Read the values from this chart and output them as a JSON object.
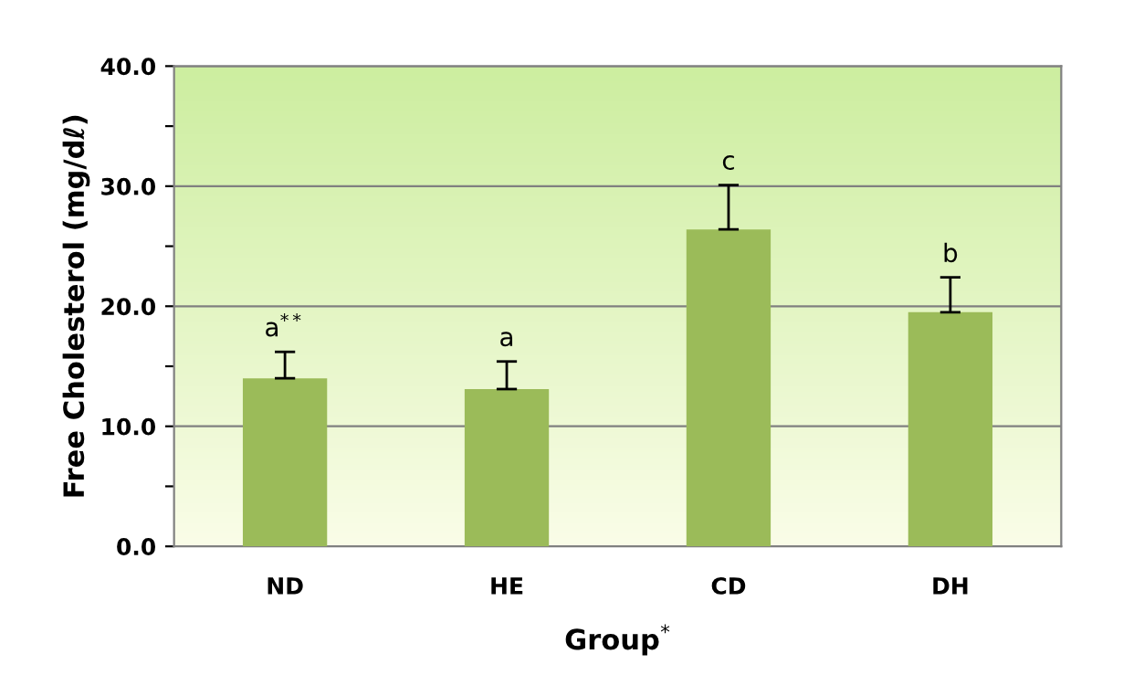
{
  "chart_data": {
    "type": "bar",
    "xlabel": "Group$^{*}$",
    "ylabel": "Free Cholesterol (mg/dℓ)",
    "categories": [
      "ND",
      "HE",
      "CD",
      "DH"
    ],
    "values": [
      14.0,
      13.1,
      26.4,
      19.5
    ],
    "errors": [
      2.2,
      2.3,
      3.7,
      2.9
    ],
    "color": "#9bbb59",
    "ylim": [
      0,
      40
    ],
    "yticks": [
      {
        "value": 0,
        "label": "0.0"
      },
      {
        "value": 5,
        "label": null
      },
      {
        "value": 10,
        "label": "10.0"
      },
      {
        "value": 15,
        "label": null
      },
      {
        "value": 20,
        "label": "20.0"
      },
      {
        "value": 25,
        "label": null
      },
      {
        "value": 30,
        "label": "30.0"
      },
      {
        "value": 35,
        "label": null
      },
      {
        "value": 40,
        "label": "40.0"
      }
    ],
    "grid": "y",
    "annotations": [
      {
        "text": "a$^{**}$",
        "x": "ND",
        "y": 16.2
      },
      {
        "text": "a",
        "x": "HE",
        "y": 15.4
      },
      {
        "text": "c",
        "x": "CD",
        "y": 30.1
      },
      {
        "text": "b",
        "x": "DH",
        "y": 22.4
      }
    ]
  }
}
